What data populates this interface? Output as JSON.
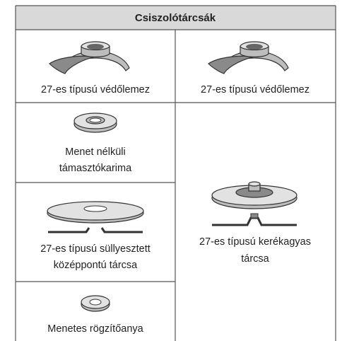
{
  "table": {
    "title": "Csiszolótárcsák",
    "left": [
      {
        "label": [
          "27-es típusú védőlemez"
        ]
      },
      {
        "label": [
          "Menet nélküli",
          "támasztókarima"
        ]
      },
      {
        "label": [
          "27-es típusú süllyesztett",
          "középpontú tárcsa"
        ]
      },
      {
        "label": [
          "Menetes rögzítőanya"
        ]
      }
    ],
    "right": [
      {
        "label": [
          "27-es típusú védőlemez"
        ]
      },
      {
        "label": [
          "27-es típusú kerékagyas",
          "tárcsa"
        ]
      }
    ]
  }
}
